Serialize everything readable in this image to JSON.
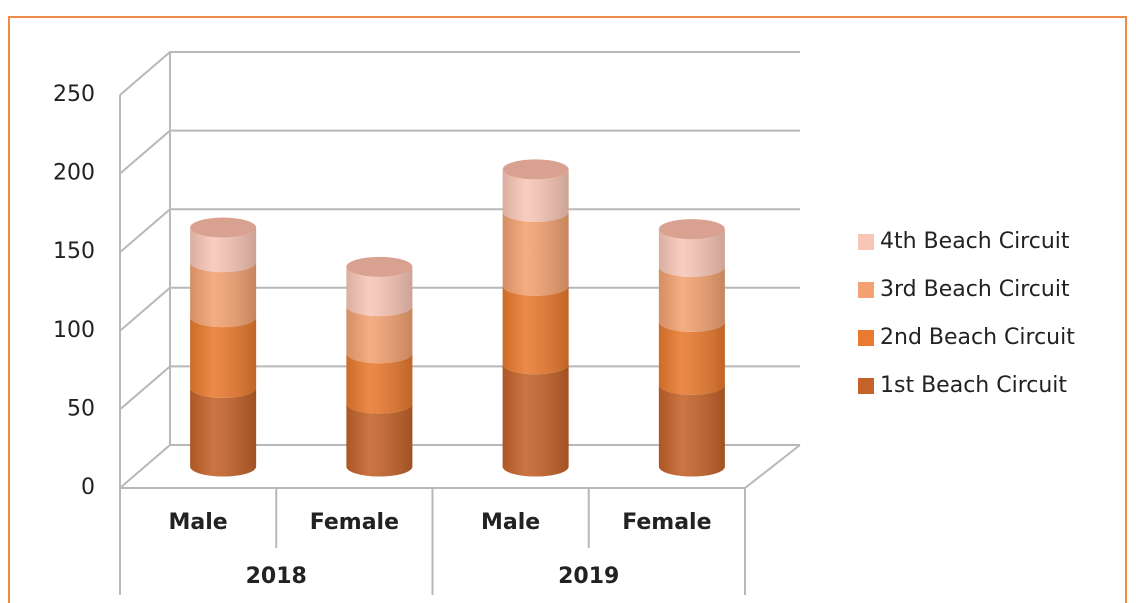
{
  "chart_data": {
    "type": "bar",
    "categories": [
      "Male",
      "Female",
      "Male",
      "Female"
    ],
    "groups": [
      "2018",
      "2019"
    ],
    "series": [
      {
        "name": "1st Beach Circuit",
        "color": "#c4622a",
        "values": [
          50,
          40,
          65,
          52
        ]
      },
      {
        "name": "2nd Beach Circuit",
        "color": "#e97a2f",
        "values": [
          45,
          32,
          50,
          40
        ]
      },
      {
        "name": "3rd Beach Circuit",
        "color": "#f2a271",
        "values": [
          35,
          30,
          47,
          35
        ]
      },
      {
        "name": "4th Beach Circuit",
        "color": "#f8c6b6",
        "values": [
          22,
          25,
          27,
          24
        ]
      }
    ],
    "ylim": [
      0,
      250
    ],
    "yticks": [
      0,
      50,
      100,
      150,
      200,
      250
    ],
    "grid": true,
    "legend": "right"
  }
}
